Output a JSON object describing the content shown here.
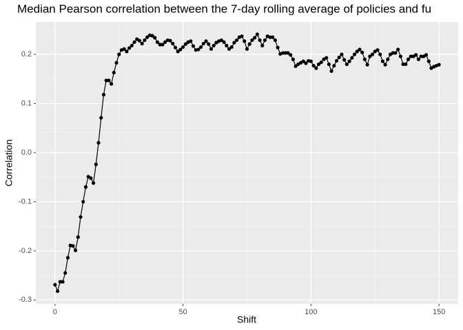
{
  "chart_data": {
    "type": "line",
    "title": "Median Pearson correlation between the 7-day rolling average of policies and fu",
    "x_label": "Shift",
    "y_label": "Correlation",
    "x": [
      0,
      1,
      2,
      3,
      4,
      5,
      6,
      7,
      8,
      9,
      10,
      11,
      12,
      13,
      14,
      15,
      16,
      17,
      18,
      19,
      20,
      21,
      22,
      23,
      24,
      25,
      26,
      27,
      28,
      29,
      30,
      31,
      32,
      33,
      34,
      35,
      36,
      37,
      38,
      39,
      40,
      41,
      42,
      43,
      44,
      45,
      46,
      47,
      48,
      49,
      50,
      51,
      52,
      53,
      54,
      55,
      56,
      57,
      58,
      59,
      60,
      61,
      62,
      63,
      64,
      65,
      66,
      67,
      68,
      69,
      70,
      71,
      72,
      73,
      74,
      75,
      76,
      77,
      78,
      79,
      80,
      81,
      82,
      83,
      84,
      85,
      86,
      87,
      88,
      89,
      90,
      91,
      92,
      93,
      94,
      95,
      96,
      97,
      98,
      99,
      100,
      101,
      102,
      103,
      104,
      105,
      106,
      107,
      108,
      109,
      110,
      111,
      112,
      113,
      114,
      115,
      116,
      117,
      118,
      119,
      120,
      121,
      122,
      123,
      124,
      125,
      126,
      127,
      128,
      129,
      130,
      131,
      132,
      133,
      134,
      135,
      136,
      137,
      138,
      139,
      140,
      141,
      142,
      143,
      144,
      145,
      146,
      147,
      148,
      149,
      150
    ],
    "series": [
      {
        "color": "#000000",
        "values": [
          -0.269,
          -0.282,
          -0.263,
          -0.263,
          -0.245,
          -0.214,
          -0.189,
          -0.19,
          -0.199,
          -0.172,
          -0.131,
          -0.1,
          -0.07,
          -0.049,
          -0.052,
          -0.062,
          -0.024,
          0.02,
          0.071,
          0.118,
          0.147,
          0.147,
          0.14,
          0.163,
          0.183,
          0.2,
          0.209,
          0.211,
          0.206,
          0.213,
          0.218,
          0.225,
          0.231,
          0.228,
          0.222,
          0.229,
          0.235,
          0.239,
          0.238,
          0.234,
          0.225,
          0.22,
          0.22,
          0.225,
          0.229,
          0.228,
          0.222,
          0.214,
          0.206,
          0.21,
          0.215,
          0.221,
          0.225,
          0.227,
          0.217,
          0.209,
          0.21,
          0.215,
          0.222,
          0.227,
          0.221,
          0.211,
          0.218,
          0.224,
          0.227,
          0.229,
          0.225,
          0.218,
          0.211,
          0.215,
          0.224,
          0.229,
          0.235,
          0.237,
          0.227,
          0.211,
          0.221,
          0.229,
          0.234,
          0.241,
          0.229,
          0.218,
          0.229,
          0.237,
          0.235,
          0.235,
          0.229,
          0.214,
          0.201,
          0.203,
          0.203,
          0.203,
          0.199,
          0.19,
          0.176,
          0.18,
          0.183,
          0.186,
          0.182,
          0.187,
          0.186,
          0.177,
          0.172,
          0.18,
          0.184,
          0.19,
          0.193,
          0.18,
          0.166,
          0.177,
          0.187,
          0.194,
          0.2,
          0.189,
          0.18,
          0.186,
          0.193,
          0.2,
          0.206,
          0.21,
          0.204,
          0.19,
          0.179,
          0.196,
          0.2,
          0.206,
          0.209,
          0.2,
          0.186,
          0.179,
          0.19,
          0.2,
          0.203,
          0.203,
          0.21,
          0.196,
          0.18,
          0.18,
          0.19,
          0.196,
          0.196,
          0.199,
          0.19,
          0.196,
          0.196,
          0.199,
          0.186,
          0.172,
          0.175,
          0.177,
          0.179
        ]
      }
    ],
    "xlim": [
      -7.5,
      157.5
    ],
    "xticks": [
      0,
      50,
      100,
      150
    ],
    "x_minor_ticks": [
      25,
      75,
      125
    ],
    "ylim": [
      -0.308,
      0.266
    ],
    "yticks": [
      -0.3,
      -0.2,
      -0.1,
      {
        "value": 0,
        "label": "0.0"
      },
      0.1,
      0.2
    ],
    "y_minor_ticks": [
      -0.25,
      -0.15,
      -0.05,
      0.05,
      0.15,
      0.25
    ],
    "grid": true
  }
}
